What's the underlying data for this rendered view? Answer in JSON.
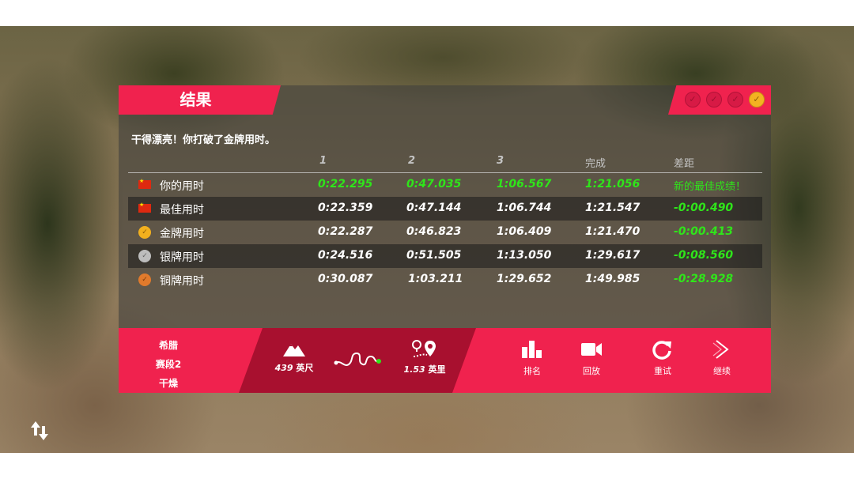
{
  "panel": {
    "title": "结果",
    "message": "干得漂亮！你打破了金牌用时。",
    "medals": [
      {
        "icon": "medal-locked-icon",
        "earned": false
      },
      {
        "icon": "medal-locked-icon",
        "earned": false
      },
      {
        "icon": "medal-locked-icon",
        "earned": false
      },
      {
        "icon": "medal-gold-icon",
        "earned": true
      }
    ]
  },
  "table": {
    "headers": [
      "1",
      "2",
      "3",
      "完成",
      "差距"
    ],
    "rows": [
      {
        "label": "你的用时",
        "icon": "china-flag-icon",
        "s1": "0:22.295",
        "s2": "0:47.035",
        "s3": "1:06.567",
        "finish": "1:21.056",
        "gap": "新的最佳成绩！"
      },
      {
        "label": "最佳用时",
        "icon": "china-flag-icon",
        "s1": "0:22.359",
        "s2": "0:47.144",
        "s3": "1:06.744",
        "finish": "1:21.547",
        "gap": "-0:00.490"
      },
      {
        "label": "金牌用时",
        "icon": "gold-medal-icon",
        "s1": "0:22.287",
        "s2": "0:46.823",
        "s3": "1:06.409",
        "finish": "1:21.470",
        "gap": "-0:00.413"
      },
      {
        "label": "银牌用时",
        "icon": "silver-medal-icon",
        "s1": "0:24.516",
        "s2": "0:51.505",
        "s3": "1:13.050",
        "finish": "1:29.617",
        "gap": "-0:08.560"
      },
      {
        "label": "铜牌用时",
        "icon": "bronze-medal-icon",
        "s1": "0:30.087",
        "s2": "1:03.211",
        "s3": "1:29.652",
        "finish": "1:49.985",
        "gap": "-0:28.928"
      }
    ]
  },
  "stage": {
    "country": "希腊",
    "stage": "赛段2",
    "surface": "干燥"
  },
  "stats": {
    "elevation_value": "439",
    "elevation_unit": "英尺",
    "distance_value": "1.53",
    "distance_unit": "英里"
  },
  "actions": {
    "leaderboard": "排名",
    "replay": "回放",
    "retry": "重试",
    "continue": "继续"
  },
  "colors": {
    "accent": "#f0224e",
    "accent_dark": "#a8102f",
    "highlight": "#2fe51a",
    "gold": "#f2b01e"
  }
}
